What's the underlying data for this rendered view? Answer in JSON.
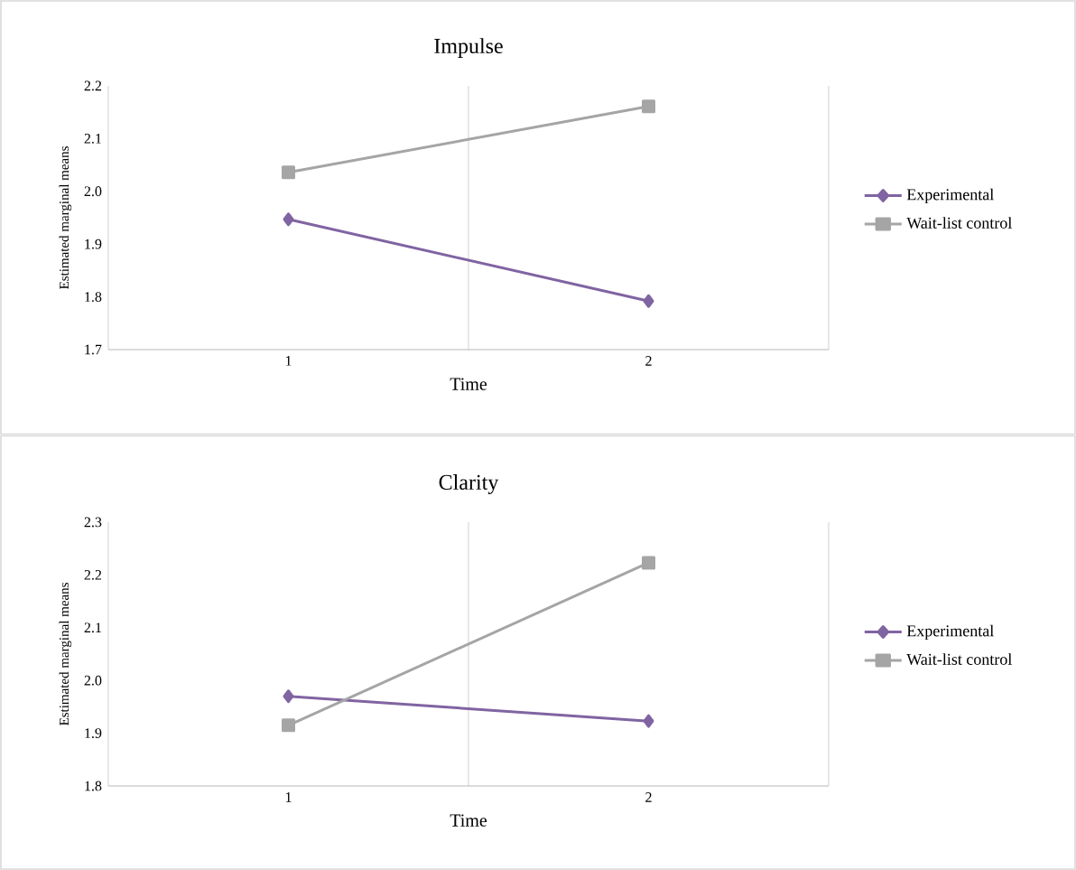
{
  "chart_data": [
    {
      "type": "line",
      "title": "Impulse",
      "xlabel": "Time",
      "ylabel": "Estimated marginal means",
      "categories": [
        "1",
        "2"
      ],
      "series": [
        {
          "name": "Experimental",
          "color": "#8064a2",
          "marker": "diamond",
          "values": [
            1.947,
            1.792
          ]
        },
        {
          "name": "Wait-list control",
          "color": "#a5a5a5",
          "marker": "square",
          "values": [
            2.036,
            2.161
          ]
        }
      ],
      "ylim": [
        1.7,
        2.2
      ],
      "yticks": [
        1.7,
        1.8,
        1.9,
        {
          "value": 2.0,
          "label": "2.0"
        },
        2.1,
        2.2
      ],
      "grid": "x",
      "legend": "right"
    },
    {
      "type": "line",
      "title": "Clarity",
      "xlabel": "Time",
      "ylabel": "Estimated marginal means",
      "categories": [
        "1",
        "2"
      ],
      "series": [
        {
          "name": "Experimental",
          "color": "#8064a2",
          "marker": "diamond",
          "values": [
            1.97,
            1.923
          ]
        },
        {
          "name": "Wait-list control",
          "color": "#a5a5a5",
          "marker": "square",
          "values": [
            1.915,
            2.223
          ]
        }
      ],
      "ylim": [
        1.8,
        2.3
      ],
      "yticks": [
        1.8,
        1.9,
        {
          "value": 2.0,
          "label": "2.0"
        },
        2.1,
        2.2,
        2.3
      ],
      "grid": "x",
      "legend": "right"
    }
  ]
}
